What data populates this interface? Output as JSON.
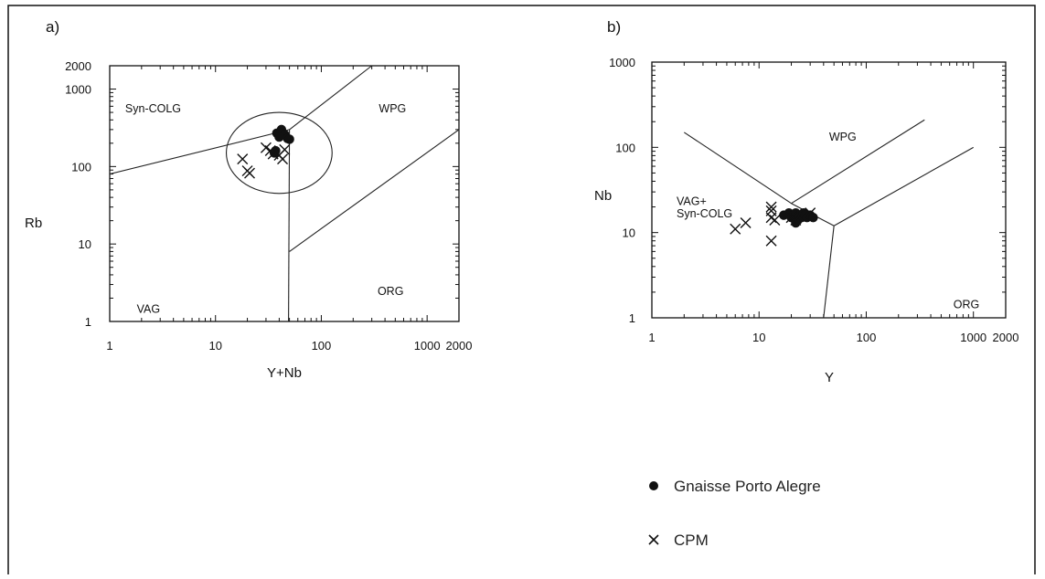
{
  "chart_data": [
    {
      "type": "scatter",
      "panel": "a)",
      "xscale": "log",
      "yscale": "log",
      "xlim": [
        1,
        2000
      ],
      "ylim": [
        1,
        2000
      ],
      "xlabel": "Y+Nb",
      "ylabel": "Rb",
      "xticks": [
        1,
        10,
        100,
        1000,
        2000
      ],
      "xtick_labels": [
        "1",
        "10",
        "100",
        "1000",
        "2000"
      ],
      "yticks": [
        1,
        10,
        100,
        1000,
        2000
      ],
      "ytick_labels": [
        "1",
        "10",
        "100",
        "1000",
        "2000"
      ],
      "grid": false,
      "field_labels": [
        {
          "text": "Syn-COLG",
          "x": 1.4,
          "y": 500
        },
        {
          "text": "WPG",
          "x": 350,
          "y": 500
        },
        {
          "text": "VAG",
          "x": 1.6,
          "y": 1.3
        },
        {
          "text": "ORG",
          "x": 340,
          "y": 2.2
        }
      ],
      "boundaries": [
        [
          [
            1,
            80
          ],
          [
            50,
            300
          ]
        ],
        [
          [
            50,
            300
          ],
          [
            49,
            1
          ]
        ],
        [
          [
            50,
            300
          ],
          [
            300,
            2000
          ]
        ],
        [
          [
            50,
            8
          ],
          [
            2000,
            300
          ]
        ]
      ],
      "ellipse": {
        "center": [
          40,
          150
        ],
        "x_range": [
          13,
          130
        ],
        "y_range": [
          45,
          500
        ]
      },
      "series": [
        {
          "name": "Gnaisse Porto Alegre",
          "marker": "dot",
          "x": [
            38,
            42,
            45,
            40,
            37,
            48,
            36,
            50
          ],
          "y": [
            270,
            300,
            260,
            240,
            160,
            230,
            150,
            225
          ]
        },
        {
          "name": "CPM",
          "marker": "x",
          "x": [
            30,
            33,
            35,
            40,
            45,
            18,
            20,
            21,
            43
          ],
          "y": [
            175,
            160,
            145,
            140,
            165,
            125,
            88,
            82,
            125
          ]
        }
      ]
    },
    {
      "type": "scatter",
      "panel": "b)",
      "xscale": "log",
      "yscale": "log",
      "xlim": [
        1,
        2000
      ],
      "ylim": [
        1,
        1000
      ],
      "xlabel": "Y",
      "ylabel": "Nb",
      "xticks": [
        1,
        10,
        100,
        1000,
        2000
      ],
      "xtick_labels": [
        "1",
        "10",
        "100",
        "1000",
        "2000"
      ],
      "yticks": [
        1,
        10,
        100,
        1000
      ],
      "ytick_labels": [
        "1",
        "10",
        "100",
        "1000"
      ],
      "grid": false,
      "field_labels": [
        {
          "text": "WPG",
          "x": 45,
          "y": 120
        },
        {
          "text": "VAG+",
          "x": 1.7,
          "y": 21
        },
        {
          "text": "Syn-COLG",
          "x": 1.7,
          "y": 15
        },
        {
          "text": "ORG",
          "x": 650,
          "y": 1.3
        }
      ],
      "boundaries": [
        [
          [
            2,
            150
          ],
          [
            20,
            22
          ]
        ],
        [
          [
            20,
            22
          ],
          [
            350,
            210
          ]
        ],
        [
          [
            20,
            22
          ],
          [
            50,
            12
          ]
        ],
        [
          [
            50,
            12
          ],
          [
            1000,
            100
          ]
        ],
        [
          [
            50,
            12
          ],
          [
            40,
            1
          ]
        ]
      ],
      "series": [
        {
          "name": "Gnaisse Porto Alegre",
          "marker": "dot",
          "x": [
            17,
            19,
            20,
            21,
            22,
            23,
            24,
            25,
            26,
            27,
            28,
            30,
            32,
            22
          ],
          "y": [
            16,
            17,
            15,
            16,
            17,
            14,
            16,
            15,
            17,
            16,
            15,
            16,
            15,
            13
          ]
        },
        {
          "name": "CPM",
          "marker": "x",
          "x": [
            6,
            7.5,
            13,
            13,
            13,
            14,
            13,
            20,
            22,
            30
          ],
          "y": [
            11,
            13,
            20,
            18,
            15,
            14,
            8,
            15,
            14,
            17
          ]
        }
      ]
    }
  ],
  "legend": [
    {
      "marker": "dot",
      "label": "Gnaisse Porto Alegre"
    },
    {
      "marker": "x",
      "label": "CPM"
    }
  ]
}
